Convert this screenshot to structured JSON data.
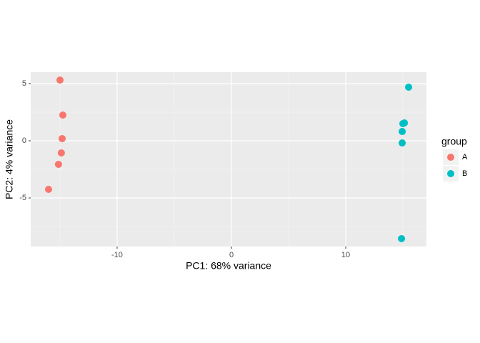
{
  "chart_data": {
    "type": "scatter",
    "x_label": "PC1: 68% variance",
    "y_label": "PC2: 4% variance",
    "xlim": [
      -17.56,
      17.06
    ],
    "ylim": [
      -9.25,
      6.0
    ],
    "xticks": [
      -10,
      0,
      10
    ],
    "yticks": [
      -5,
      0,
      5
    ],
    "grid": true,
    "legend_title": "group",
    "legend_position": "right",
    "series": [
      {
        "name": "A",
        "color": "#f8766d",
        "x": [
          -15.0,
          -14.75,
          -14.81,
          -14.88,
          -15.13,
          -16.0
        ],
        "values": [
          5.31,
          2.25,
          0.19,
          -1.06,
          -2.06,
          -4.25
        ]
      },
      {
        "name": "B",
        "color": "#00bfc4",
        "x": [
          15.5,
          15.13,
          15.0,
          14.94,
          14.94,
          14.88
        ],
        "values": [
          4.69,
          1.56,
          1.5,
          0.81,
          -0.19,
          -8.56
        ]
      }
    ]
  }
}
